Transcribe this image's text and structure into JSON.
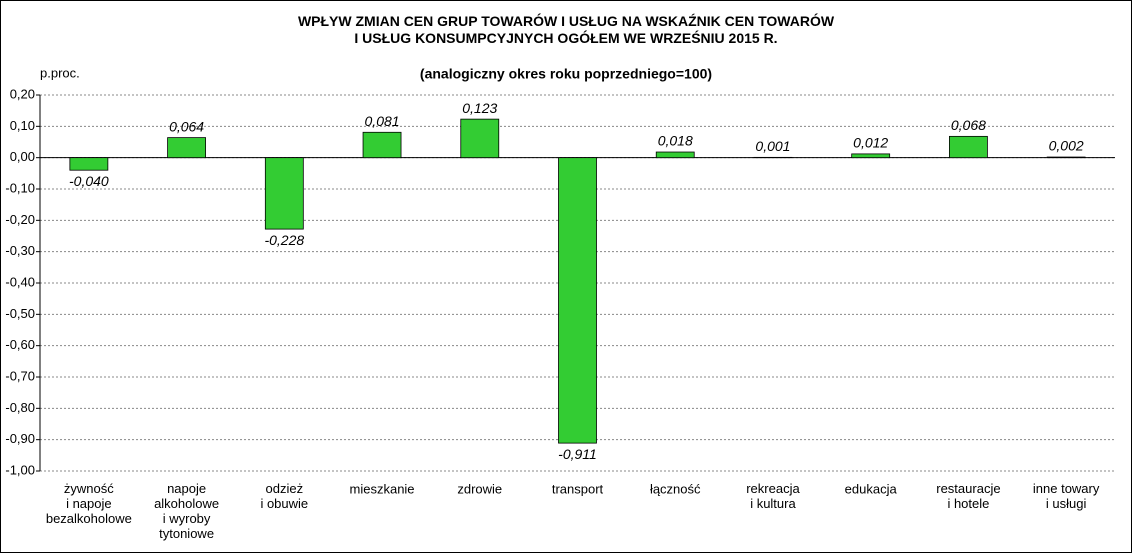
{
  "chart_data": {
    "type": "bar",
    "title": "WPŁYW ZMIAN CEN GRUP TOWARÓW I USŁUG NA WSKAŹNIK CEN TOWARÓW\nI USŁUG KONSUMPCYJNYCH OGÓŁEM WE WRZEŚNIU 2015 R.",
    "subtitle": "(analogiczny okres roku poprzedniego=100)",
    "y_label": "p.proc.",
    "categories": [
      "żywność\ni napoje\nbezalkoholowe",
      "napoje\nalkoholowe\ni wyroby\ntytoniowe",
      "odzież\ni obuwie",
      "mieszkanie",
      "zdrowie",
      "transport",
      "łączność",
      "rekreacja\ni kultura",
      "edukacja",
      "restauracje\ni hotele",
      "inne towary\ni usługi"
    ],
    "values": [
      -0.04,
      0.064,
      -0.228,
      0.081,
      0.123,
      -0.911,
      0.018,
      0.001,
      0.012,
      0.068,
      0.002
    ],
    "value_labels": [
      "-0,040",
      "0,064",
      "-0,228",
      "0,081",
      "0,123",
      "-0,911",
      "0,018",
      "0,001",
      "0,012",
      "0,068",
      "0,002"
    ],
    "color": "#33cc33",
    "ylim": [
      -1.0,
      0.2
    ],
    "yticks": [
      {
        "value": 0.2,
        "label": "0,20"
      },
      {
        "value": 0.1,
        "label": "0,10"
      },
      {
        "value": 0,
        "label": "0,00"
      },
      {
        "value": -0.1,
        "label": "-0,10"
      },
      {
        "value": -0.2,
        "label": "-0,20"
      },
      {
        "value": -0.3,
        "label": "-0,30"
      },
      {
        "value": -0.4,
        "label": "-0,40"
      },
      {
        "value": -0.5,
        "label": "-0,50"
      },
      {
        "value": -0.6,
        "label": "-0,60"
      },
      {
        "value": -0.7,
        "label": "-0,70"
      },
      {
        "value": -0.8,
        "label": "-0,80"
      },
      {
        "value": -0.9,
        "label": "-0,90"
      },
      {
        "value": -1.0,
        "label": "-1,00"
      }
    ],
    "grid": true
  }
}
